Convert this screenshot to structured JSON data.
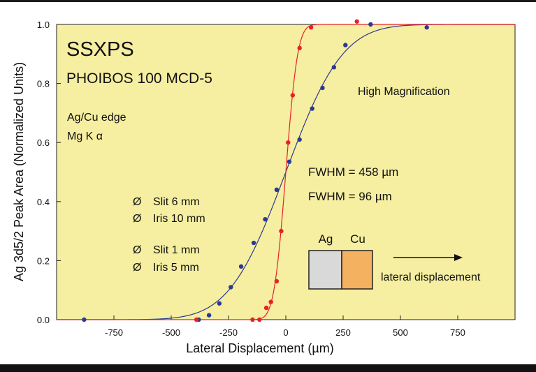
{
  "chart_data": {
    "type": "scatter",
    "title": "SSXPS",
    "subtitle": "PHOIBOS 100 MCD-5",
    "xlabel": "Lateral Displacement (µm)",
    "ylabel": "Ag 3d5/2 Peak Area (Normalized Units)",
    "xlim": [
      -1000,
      1000
    ],
    "ylim": [
      0,
      1.0
    ],
    "xticks": [
      "-750",
      "-500",
      "-250",
      "0",
      "250",
      "500",
      "750"
    ],
    "xtick_values": [
      -750,
      -500,
      -250,
      0,
      250,
      500,
      750
    ],
    "yticks": [
      "0.0",
      "0.2",
      "0.4",
      "0.6",
      "0.8",
      "1.0"
    ],
    "ytick_values": [
      0,
      0.2,
      0.4,
      0.6,
      0.8,
      1.0
    ],
    "grid": false,
    "background": "#f6eea0",
    "annotations": {
      "sample": [
        "Ag/Cu edge",
        "Mg K α"
      ],
      "mode": "High Magnification",
      "fwhm_blue": "FWHM = 458  µm",
      "fwhm_red": "FWHM = 96   µm",
      "legend_symbol": "Ø",
      "legend_blue": [
        "Slit 6 mm",
        "Iris 10 mm"
      ],
      "legend_red": [
        "Slit 1 mm",
        "Iris 5 mm"
      ],
      "diagram_left": "Ag",
      "diagram_right": "Cu",
      "diagram_arrow": "lateral displacement"
    },
    "series": [
      {
        "color": "#2b3990",
        "fwhm_um": 458,
        "points": [
          [
            -880,
            0.0
          ],
          [
            -380,
            0.0
          ],
          [
            -335,
            0.015
          ],
          [
            -290,
            0.055
          ],
          [
            -240,
            0.11
          ],
          [
            -195,
            0.18
          ],
          [
            -140,
            0.26
          ],
          [
            -90,
            0.34
          ],
          [
            -40,
            0.44
          ],
          [
            15,
            0.535
          ],
          [
            60,
            0.61
          ],
          [
            115,
            0.715
          ],
          [
            160,
            0.785
          ],
          [
            210,
            0.855
          ],
          [
            260,
            0.93
          ],
          [
            370,
            1.0
          ],
          [
            615,
            0.99
          ]
        ]
      },
      {
        "color": "#e52228",
        "fwhm_um": 96,
        "points": [
          [
            -390,
            0.0
          ],
          [
            -145,
            0.0
          ],
          [
            -115,
            0.0
          ],
          [
            -85,
            0.04
          ],
          [
            -65,
            0.06
          ],
          [
            -40,
            0.13
          ],
          [
            -20,
            0.3
          ],
          [
            10,
            0.6
          ],
          [
            30,
            0.76
          ],
          [
            60,
            0.92
          ],
          [
            110,
            0.99
          ],
          [
            310,
            1.01
          ]
        ]
      }
    ]
  }
}
